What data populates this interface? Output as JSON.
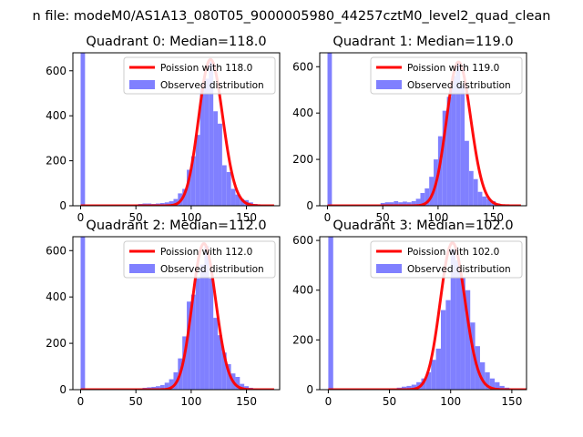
{
  "figure": {
    "suptitle": "n file: modeM0/AS1A13_080T05_9000005980_44257cztM0_level2_quad_clean"
  },
  "colors": {
    "hist_fill": "#8080ff",
    "poisson_line": "#ff0000",
    "background": "#ffffff",
    "axis": "#000000"
  },
  "chart_data": [
    {
      "type": "bar",
      "title": "Quadrant 0: Median=118.0",
      "legend_position": "upper right",
      "legend": {
        "line_label": "Poission with 118.0",
        "hist_label": "Observed distribution"
      },
      "xlim": [
        -7,
        180
      ],
      "ylim": [
        0,
        680
      ],
      "xticks": [
        0,
        50,
        100,
        150
      ],
      "yticks": [
        0,
        200,
        400,
        600
      ],
      "median": 118.0,
      "poisson_peak": 650,
      "bin_width": 4,
      "bin_starts": [
        0,
        52,
        56,
        60,
        64,
        68,
        72,
        76,
        80,
        84,
        88,
        92,
        96,
        100,
        104,
        108,
        112,
        116,
        120,
        124,
        128,
        132,
        136,
        140,
        144,
        148,
        152,
        156,
        160,
        164
      ],
      "counts": [
        680,
        8,
        10,
        10,
        8,
        10,
        12,
        15,
        20,
        30,
        55,
        75,
        160,
        220,
        315,
        520,
        565,
        640,
        420,
        365,
        180,
        150,
        75,
        50,
        30,
        25,
        15,
        8,
        5,
        3
      ]
    },
    {
      "type": "bar",
      "title": "Quadrant 1: Median=119.0",
      "legend_position": "upper right",
      "legend": {
        "line_label": "Poission with 119.0",
        "hist_label": "Observed distribution"
      },
      "xlim": [
        -7,
        180
      ],
      "ylim": [
        0,
        660
      ],
      "xticks": [
        0,
        50,
        100,
        150
      ],
      "yticks": [
        0,
        200,
        400,
        600
      ],
      "median": 119.0,
      "poisson_peak": 620,
      "bin_width": 4,
      "bin_starts": [
        0,
        48,
        52,
        56,
        60,
        64,
        68,
        72,
        76,
        80,
        84,
        88,
        92,
        96,
        100,
        104,
        108,
        112,
        116,
        120,
        124,
        128,
        132,
        136,
        140,
        144,
        148,
        152,
        156,
        160
      ],
      "counts": [
        660,
        12,
        15,
        15,
        20,
        15,
        18,
        15,
        20,
        30,
        55,
        75,
        125,
        200,
        300,
        410,
        470,
        560,
        620,
        520,
        280,
        150,
        115,
        60,
        40,
        30,
        20,
        10,
        5,
        3
      ]
    },
    {
      "type": "bar",
      "title": "Quadrant 2: Median=112.0",
      "legend_position": "upper right",
      "legend": {
        "line_label": "Poission with 112.0",
        "hist_label": "Observed distribution"
      },
      "xlim": [
        -7,
        180
      ],
      "ylim": [
        0,
        660
      ],
      "xticks": [
        0,
        50,
        100,
        150
      ],
      "yticks": [
        0,
        200,
        400,
        600
      ],
      "median": 112.0,
      "poisson_peak": 630,
      "bin_width": 4,
      "bin_starts": [
        0,
        52,
        56,
        60,
        64,
        68,
        72,
        76,
        80,
        84,
        88,
        92,
        96,
        100,
        104,
        108,
        112,
        116,
        120,
        124,
        128,
        132,
        136,
        140,
        144,
        148,
        152,
        156,
        160
      ],
      "counts": [
        660,
        5,
        8,
        10,
        12,
        15,
        20,
        30,
        45,
        75,
        135,
        230,
        380,
        410,
        480,
        540,
        620,
        480,
        310,
        235,
        160,
        110,
        70,
        55,
        25,
        15,
        8,
        5,
        3
      ]
    },
    {
      "type": "bar",
      "title": "Quadrant 3: Median=102.0",
      "legend_position": "upper right",
      "legend": {
        "line_label": "Poission with 102.0",
        "hist_label": "Observed distribution"
      },
      "xlim": [
        -7,
        162
      ],
      "ylim": [
        0,
        615
      ],
      "xticks": [
        0,
        50,
        100,
        150
      ],
      "yticks": [
        0,
        200,
        400,
        600
      ],
      "median": 102.0,
      "poisson_peak": 590,
      "bin_width": 4,
      "bin_starts": [
        0,
        52,
        56,
        60,
        64,
        68,
        72,
        76,
        80,
        84,
        88,
        92,
        96,
        100,
        104,
        108,
        112,
        116,
        120,
        124,
        128,
        132,
        136,
        140,
        144
      ],
      "counts": [
        615,
        5,
        8,
        12,
        15,
        20,
        30,
        45,
        70,
        120,
        165,
        320,
        360,
        565,
        520,
        450,
        400,
        270,
        175,
        110,
        70,
        45,
        30,
        15,
        8
      ]
    }
  ]
}
